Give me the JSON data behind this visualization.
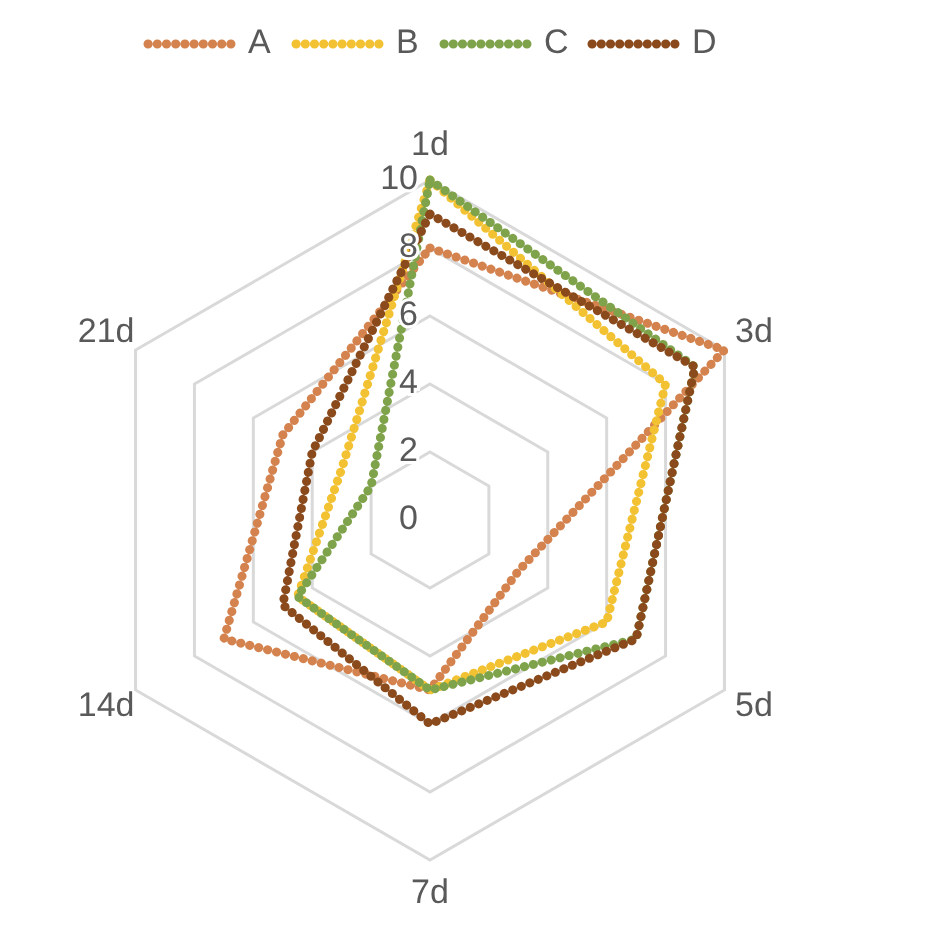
{
  "chart_data": {
    "type": "radar",
    "categories": [
      "1d",
      "3d",
      "5d",
      "7d",
      "14d",
      "21d"
    ],
    "series": [
      {
        "name": "A",
        "color": "#d4834f",
        "values": [
          8,
          10,
          3,
          5,
          7,
          5
        ]
      },
      {
        "name": "B",
        "color": "#f2c233",
        "values": [
          10,
          8,
          6,
          5,
          4.5,
          3
        ]
      },
      {
        "name": "C",
        "color": "#7fa34a",
        "values": [
          10,
          9,
          7,
          5,
          4.5,
          2
        ]
      },
      {
        "name": "D",
        "color": "#8a4a1c",
        "values": [
          9,
          9,
          7,
          6,
          5,
          4
        ]
      }
    ],
    "ylim": [
      0,
      10
    ],
    "yticks": [
      0,
      2,
      4,
      6,
      8,
      10
    ],
    "grid": true,
    "legend": "top",
    "line_style": "dotted",
    "marker": "none"
  }
}
